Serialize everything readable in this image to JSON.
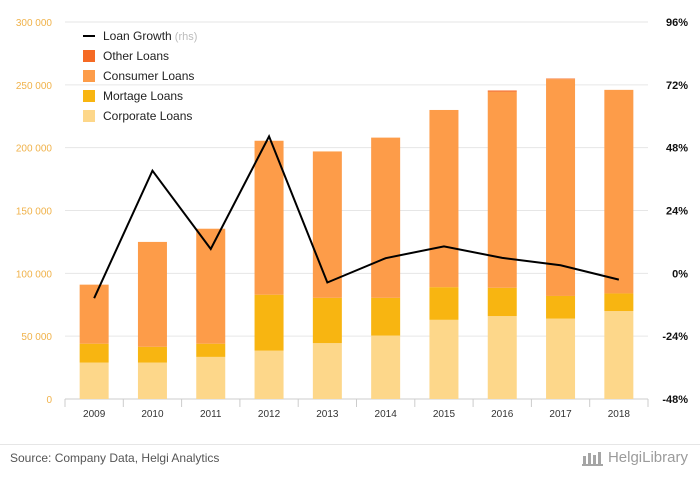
{
  "chart_data": {
    "type": "bar",
    "stacked": true,
    "categories": [
      "2009",
      "2010",
      "2011",
      "2012",
      "2013",
      "2014",
      "2015",
      "2016",
      "2017",
      "2018"
    ],
    "series": [
      {
        "name": "Corporate Loans",
        "axis": "left",
        "color": "#fdd78a",
        "values": [
          29000,
          29000,
          33500,
          38500,
          44500,
          50500,
          63000,
          66000,
          64000,
          70000
        ]
      },
      {
        "name": "Mortage Loans",
        "axis": "left",
        "color": "#f8b511",
        "values": [
          15000,
          12500,
          10500,
          44500,
          36000,
          30000,
          26000,
          22500,
          18000,
          14000
        ]
      },
      {
        "name": "Consumer Loans",
        "axis": "left",
        "color": "#fd9c49",
        "values": [
          47000,
          83500,
          91500,
          122500,
          116500,
          127500,
          141000,
          156000,
          172500,
          162000
        ]
      },
      {
        "name": "Other Loans",
        "axis": "left",
        "color": "#f56a24",
        "values": [
          0,
          0,
          0,
          0,
          0,
          0,
          0,
          1000,
          500,
          0
        ]
      },
      {
        "name": "Loan Growth",
        "axis": "right",
        "type": "line",
        "color": "#000000",
        "values": [
          -9.5,
          39.2,
          9.3,
          52.3,
          -3.5,
          5.8,
          10.3,
          5.9,
          3.1,
          -2.4
        ]
      }
    ],
    "ylim": [
      0,
      300000
    ],
    "yticks": [
      "0",
      "50 000",
      "100 000",
      "150 000",
      "200 000",
      "250 000",
      "300 000"
    ],
    "y2lim": [
      -48,
      96
    ],
    "y2ticks": [
      "-48%",
      "-24%",
      "0%",
      "24%",
      "48%",
      "72%",
      "96%"
    ],
    "legend": {
      "position": "top-left",
      "items": [
        {
          "label": "Loan Growth",
          "suffix": "(rhs)",
          "kind": "line",
          "color": "#000000"
        },
        {
          "label": "Other Loans",
          "kind": "box",
          "color": "#f56a24"
        },
        {
          "label": "Consumer Loans",
          "kind": "box",
          "color": "#fd9c49"
        },
        {
          "label": "Mortage Loans",
          "kind": "box",
          "color": "#f8b511"
        },
        {
          "label": "Corporate Loans",
          "kind": "box",
          "color": "#fdd78a"
        }
      ]
    },
    "grid": true
  },
  "footer": {
    "source": "Source: Company Data, Helgi Analytics",
    "brand": "HelgiLibrary"
  }
}
